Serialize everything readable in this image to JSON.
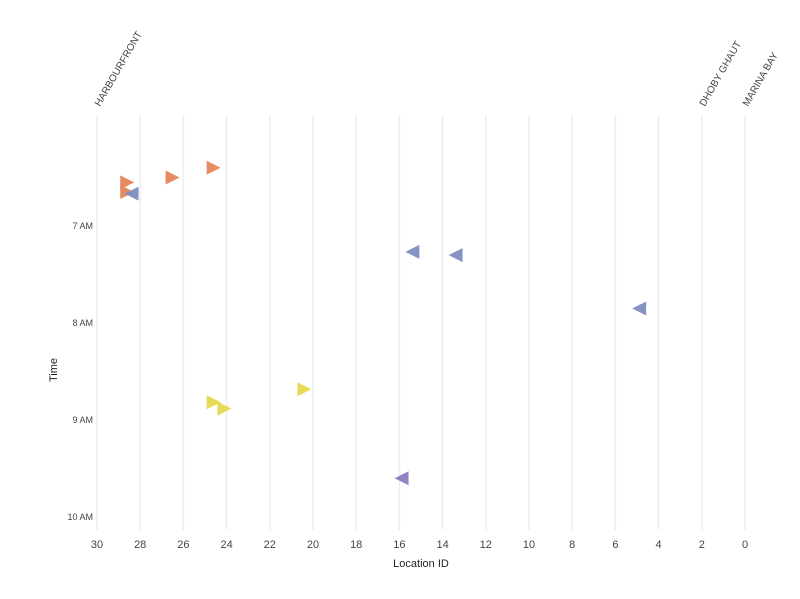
{
  "chart_data": {
    "type": "scatter",
    "title": "",
    "xlabel": "Location ID",
    "ylabel": "Time",
    "xlim": [
      30,
      0
    ],
    "x_ticks": [
      30,
      28,
      26,
      24,
      22,
      20,
      18,
      16,
      14,
      12,
      10,
      8,
      6,
      4,
      2,
      0
    ],
    "x_tick_labels": [
      "30",
      "28",
      "26",
      "24",
      "22",
      "20",
      "18",
      "16",
      "14",
      "12",
      "10",
      "8",
      "6",
      "4",
      "2",
      "0"
    ],
    "ylim_minutes": [
      360,
      600
    ],
    "y_ticks_minutes": [
      420,
      480,
      540,
      600
    ],
    "y_tick_labels": [
      "7 AM",
      "8 AM",
      "9 AM",
      "10 AM"
    ],
    "grid": true,
    "station_labels": [
      {
        "name": "HARBOURFRONT",
        "location": 30
      },
      {
        "name": "DHOBY GHAUT",
        "location": 2
      },
      {
        "name": "MARINA BAY",
        "location": 0
      }
    ],
    "colors": {
      "orange": "#e8855a",
      "blue": "#7f8cbf",
      "yellow": "#e6d84d",
      "purple": "#8d7cc0",
      "grid": "#eeeeee"
    },
    "series": [
      {
        "name": "orange",
        "direction": "right",
        "color": "#e8855a",
        "points": [
          {
            "x": 24.6,
            "t": 384
          },
          {
            "x": 26.5,
            "t": 390
          },
          {
            "x": 28.6,
            "t": 393
          },
          {
            "x": 28.6,
            "t": 399
          }
        ]
      },
      {
        "name": "blue",
        "direction": "left",
        "color": "#7f8cbf",
        "points": [
          {
            "x": 28.4,
            "t": 400
          },
          {
            "x": 15.4,
            "t": 436
          },
          {
            "x": 13.4,
            "t": 438
          },
          {
            "x": 4.9,
            "t": 471
          }
        ]
      },
      {
        "name": "yellow",
        "direction": "right",
        "color": "#e6d84d",
        "points": [
          {
            "x": 20.4,
            "t": 521
          },
          {
            "x": 24.6,
            "t": 529
          },
          {
            "x": 24.1,
            "t": 533
          }
        ]
      },
      {
        "name": "purple",
        "direction": "left",
        "color": "#8d7cc0",
        "points": [
          {
            "x": 15.9,
            "t": 576
          }
        ]
      }
    ]
  }
}
